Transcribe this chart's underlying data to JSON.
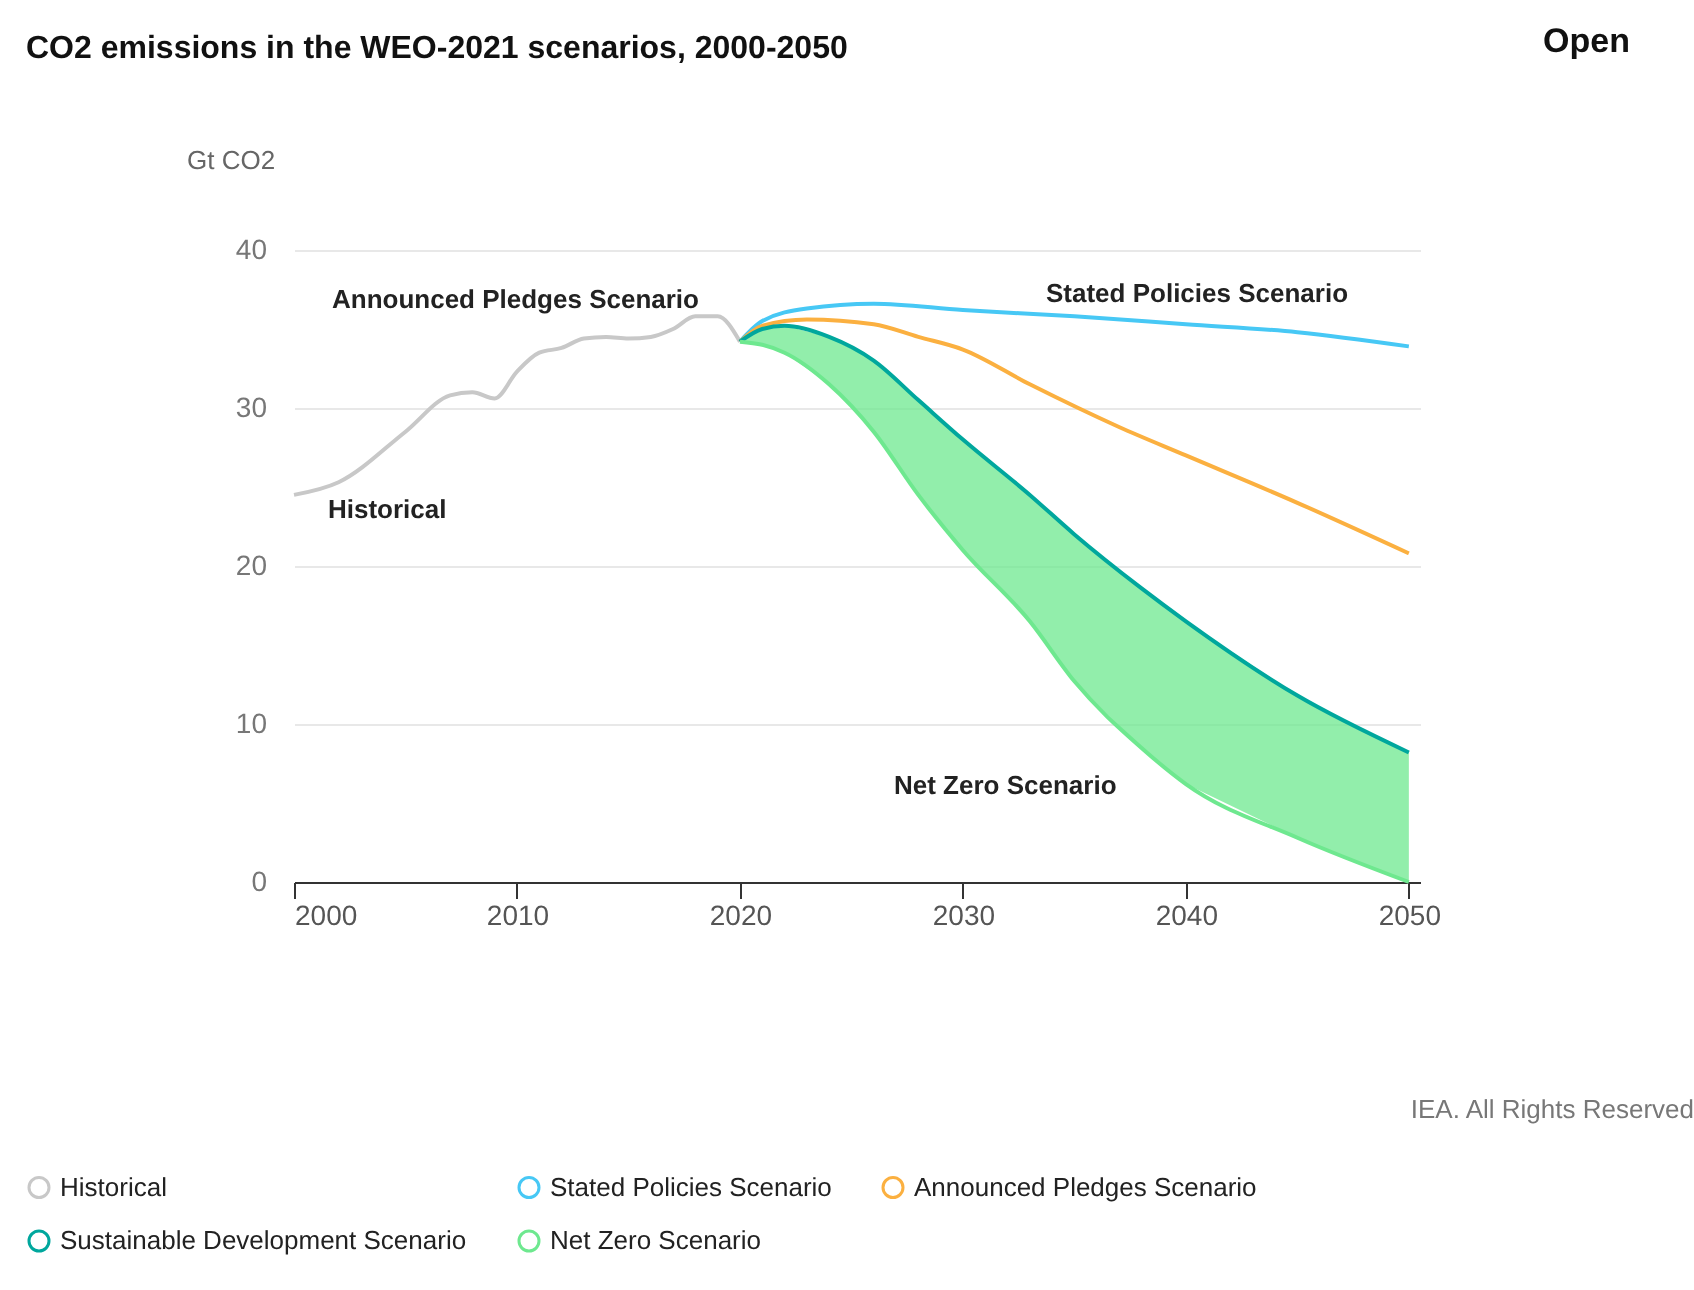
{
  "chart_data": {
    "type": "line",
    "title": "CO2 emissions in the WEO-2021 scenarios, 2000-2050",
    "ylabel": "Gt CO2",
    "xlim": [
      2000,
      2050.5
    ],
    "xticks": [
      2000,
      2010,
      2020,
      2030,
      2040,
      2050
    ],
    "ylim": [
      0,
      40
    ],
    "yticks": [
      0,
      10,
      20,
      30,
      40
    ],
    "grid": "y",
    "legend": "bottom",
    "marker": "none",
    "line_style": "solid",
    "series": [
      {
        "name": "Historical",
        "color": "#c8c8c8",
        "x": [
          2000,
          2002,
          2005,
          2007,
          2008,
          2009,
          2010,
          2011,
          2012,
          2013,
          2014,
          2015,
          2016,
          2017,
          2018,
          2019,
          2020
        ],
        "values": [
          24.5,
          25.3,
          28.5,
          30.8,
          31.0,
          30.6,
          32.3,
          33.5,
          33.8,
          34.4,
          34.5,
          34.4,
          34.5,
          35.0,
          35.8,
          35.8,
          34.2
        ]
      },
      {
        "name": "Stated Policies Scenario",
        "color": "#47c8f5",
        "x": [
          2020,
          2021,
          2023,
          2026,
          2030,
          2035,
          2040,
          2045,
          2050
        ],
        "values": [
          34.2,
          35.5,
          36.3,
          36.6,
          36.2,
          35.8,
          35.3,
          34.8,
          33.9
        ]
      },
      {
        "name": "Announced Pledges Scenario",
        "color": "#fbb040",
        "x": [
          2020,
          2021,
          2023,
          2026,
          2028,
          2030,
          2033,
          2037,
          2040,
          2045,
          2050
        ],
        "values": [
          34.2,
          35.2,
          35.6,
          35.3,
          34.5,
          33.7,
          31.5,
          28.8,
          27.0,
          24.0,
          20.8
        ]
      },
      {
        "name": "Sustainable Development Scenario",
        "color": "#00a79d",
        "x": [
          2020,
          2021,
          2022,
          2024,
          2026,
          2028,
          2030,
          2033,
          2035,
          2038,
          2040,
          2045,
          2050
        ],
        "values": [
          34.2,
          35.0,
          35.2,
          34.5,
          33.0,
          30.5,
          28.0,
          24.5,
          22.0,
          18.6,
          16.5,
          11.8,
          8.2
        ]
      },
      {
        "name": "Net Zero Scenario",
        "color": "#6ee88f",
        "x": [
          2020,
          2021,
          2022,
          2024,
          2026,
          2028,
          2030,
          2033,
          2035,
          2038,
          2040,
          2045,
          2050
        ],
        "values": [
          34.2,
          34.0,
          33.5,
          31.5,
          28.5,
          24.5,
          21.0,
          16.5,
          12.7,
          8.5,
          6.2,
          2.8,
          0
        ],
        "lower": [
          34.2,
          34.0,
          33.5,
          31.5,
          28.5,
          24.5,
          21.0,
          16.5,
          12.7,
          8.5,
          6.2,
          2.8,
          0
        ],
        "upper": [
          34.2,
          35.0,
          35.2,
          34.5,
          33.0,
          30.5,
          28.0,
          24.5,
          22.0,
          18.6,
          16.5,
          11.8,
          8.2
        ]
      }
    ],
    "annotations": [
      "Historical",
      "Announced Pledges Scenario",
      "Stated Policies Scenario",
      "Net Zero Scenario",
      "Open",
      "IEA. All Rights Reserved"
    ]
  }
}
